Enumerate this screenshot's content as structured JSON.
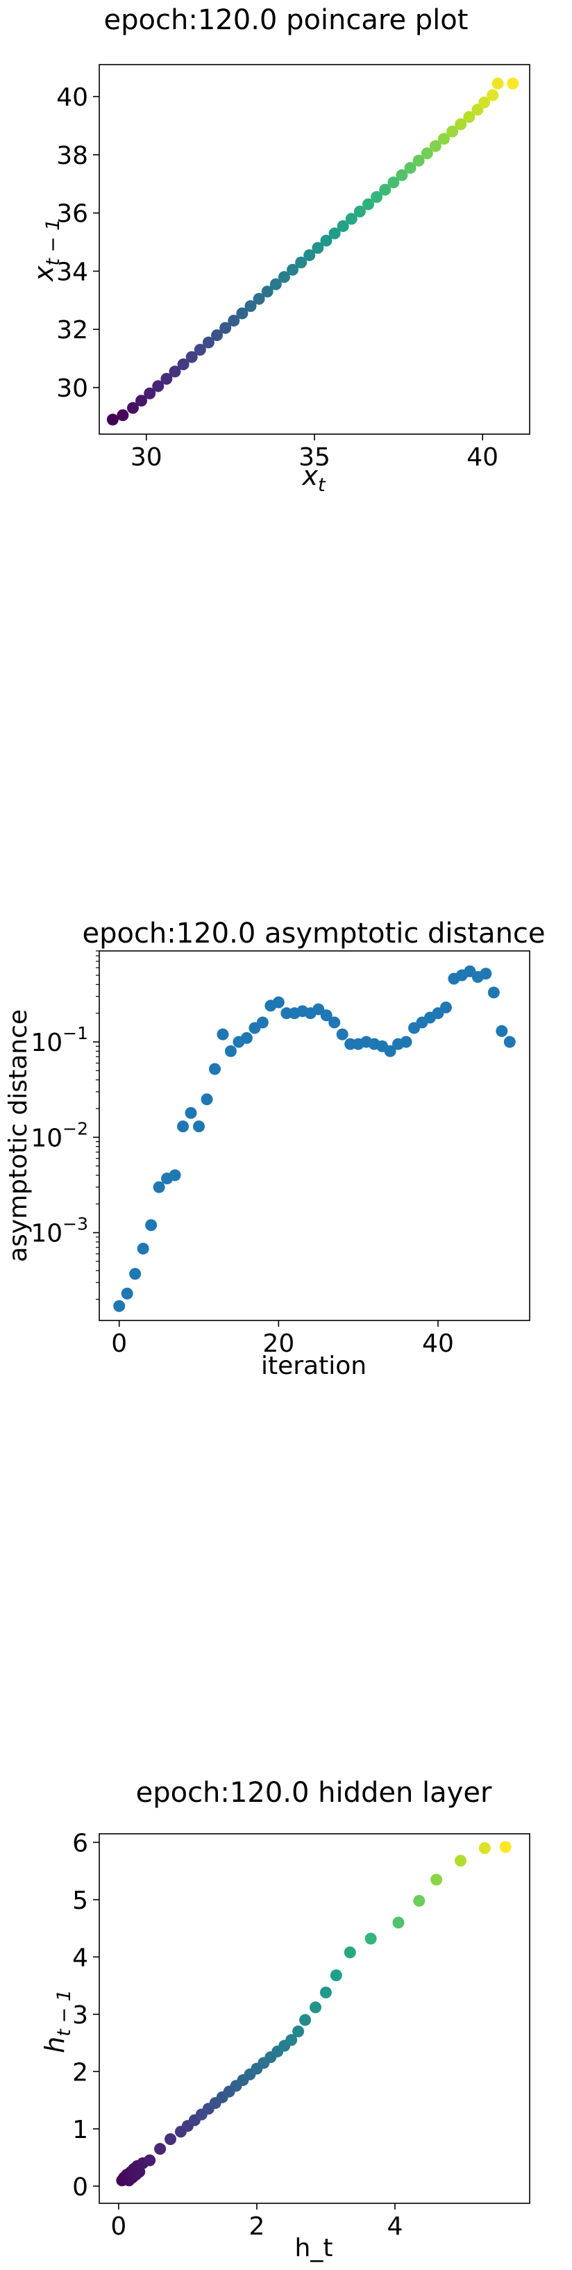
{
  "charts": {
    "poincare": {
      "title": "epoch:120.0 poincare plot",
      "xlabel_main": "x",
      "xlabel_sub": "t",
      "ylabel_main": "x",
      "ylabel_sub": "t − 1"
    },
    "asymptotic": {
      "title": "epoch:120.0 asymptotic distance",
      "xlabel": "iteration",
      "ylabel": "asymptotic distance"
    },
    "hidden": {
      "title": "epoch:120.0 hidden layer",
      "xlabel": "h_t",
      "ylabel_main": "h",
      "ylabel_sub": "t − 1"
    }
  },
  "chart_data": [
    {
      "type": "scatter",
      "title": "epoch:120.0 poincare plot",
      "xlabel": "x_t",
      "ylabel": "x_{t-1}",
      "xlim": [
        28.6,
        41.4
      ],
      "ylim": [
        28.4,
        41.1
      ],
      "xticks": [
        30,
        35,
        40
      ],
      "yticks": [
        30,
        32,
        34,
        36,
        38,
        40
      ],
      "colormap": "viridis",
      "points": {
        "x": [
          29.0,
          29.3,
          29.6,
          29.85,
          30.1,
          30.35,
          30.6,
          30.85,
          31.1,
          31.35,
          31.6,
          31.85,
          32.1,
          32.35,
          32.6,
          32.85,
          33.1,
          33.35,
          33.6,
          33.85,
          34.1,
          34.35,
          34.6,
          34.85,
          35.1,
          35.35,
          35.6,
          35.85,
          36.1,
          36.35,
          36.6,
          36.85,
          37.1,
          37.35,
          37.6,
          37.85,
          38.1,
          38.35,
          38.6,
          38.85,
          39.1,
          39.35,
          39.6,
          39.85,
          40.05,
          40.3,
          40.45,
          40.9
        ],
        "y": [
          28.9,
          29.05,
          29.3,
          29.55,
          29.8,
          30.05,
          30.3,
          30.55,
          30.8,
          31.05,
          31.3,
          31.55,
          31.8,
          32.05,
          32.3,
          32.55,
          32.8,
          33.05,
          33.3,
          33.55,
          33.8,
          34.05,
          34.3,
          34.55,
          34.8,
          35.05,
          35.3,
          35.55,
          35.8,
          36.05,
          36.3,
          36.55,
          36.8,
          37.05,
          37.3,
          37.55,
          37.8,
          38.05,
          38.3,
          38.55,
          38.8,
          39.05,
          39.3,
          39.55,
          39.8,
          40.05,
          40.45,
          40.45
        ]
      }
    },
    {
      "type": "scatter",
      "title": "epoch:120.0 asymptotic distance",
      "xlabel": "iteration",
      "ylabel": "asymptotic distance",
      "yscale": "log",
      "xlim": [
        -2.5,
        51.5
      ],
      "ylim": [
        0.00012,
        0.9
      ],
      "xticks": [
        0,
        20,
        40
      ],
      "ytick_labels": [
        "10^-3",
        "10^-2",
        "10^-1"
      ],
      "color": "#1f77b4",
      "points": {
        "x": [
          0,
          1,
          2,
          3,
          4,
          5,
          6,
          7,
          8,
          9,
          10,
          11,
          12,
          13,
          14,
          15,
          16,
          17,
          18,
          19,
          20,
          21,
          22,
          23,
          24,
          25,
          26,
          27,
          28,
          29,
          30,
          31,
          32,
          33,
          34,
          35,
          36,
          37,
          38,
          39,
          40,
          41,
          42,
          43,
          44,
          45,
          46,
          47,
          48,
          49
        ],
        "y": [
          0.00017,
          0.00023,
          0.00037,
          0.00068,
          0.0012,
          0.003,
          0.0037,
          0.004,
          0.013,
          0.018,
          0.013,
          0.025,
          0.052,
          0.12,
          0.08,
          0.1,
          0.11,
          0.14,
          0.16,
          0.24,
          0.26,
          0.2,
          0.2,
          0.21,
          0.2,
          0.22,
          0.19,
          0.16,
          0.12,
          0.095,
          0.095,
          0.1,
          0.095,
          0.09,
          0.08,
          0.095,
          0.1,
          0.14,
          0.16,
          0.18,
          0.2,
          0.23,
          0.46,
          0.5,
          0.55,
          0.48,
          0.52,
          0.33,
          0.13,
          0.1
        ]
      }
    },
    {
      "type": "scatter",
      "title": "epoch:120.0 hidden layer",
      "xlabel": "h_t",
      "ylabel": "h_{t-1}",
      "xlim": [
        -0.28,
        5.95
      ],
      "ylim": [
        -0.3,
        6.15
      ],
      "xticks": [
        0,
        2,
        4
      ],
      "yticks": [
        0,
        1,
        2,
        3,
        4,
        5,
        6
      ],
      "colormap": "viridis",
      "points": {
        "x": [
          0.05,
          0.08,
          0.1,
          0.12,
          0.15,
          0.18,
          0.2,
          0.22,
          0.25,
          0.27,
          0.3,
          0.35,
          0.45,
          0.6,
          0.75,
          0.9,
          1.0,
          1.1,
          1.2,
          1.3,
          1.4,
          1.5,
          1.6,
          1.7,
          1.8,
          1.9,
          2.0,
          2.1,
          2.2,
          2.3,
          2.4,
          2.5,
          2.6,
          2.7,
          2.85,
          3.0,
          3.15,
          3.35,
          3.65,
          4.05,
          4.35,
          4.6,
          4.95,
          5.3,
          5.6
        ],
        "y": [
          0.1,
          0.15,
          0.12,
          0.2,
          0.1,
          0.25,
          0.15,
          0.3,
          0.2,
          0.35,
          0.25,
          0.4,
          0.45,
          0.65,
          0.82,
          0.95,
          1.05,
          1.15,
          1.25,
          1.35,
          1.45,
          1.55,
          1.65,
          1.75,
          1.85,
          1.95,
          2.05,
          2.15,
          2.25,
          2.35,
          2.45,
          2.55,
          2.7,
          2.9,
          3.12,
          3.38,
          3.68,
          4.08,
          4.32,
          4.6,
          4.98,
          5.35,
          5.68,
          5.9,
          5.92
        ]
      }
    }
  ]
}
